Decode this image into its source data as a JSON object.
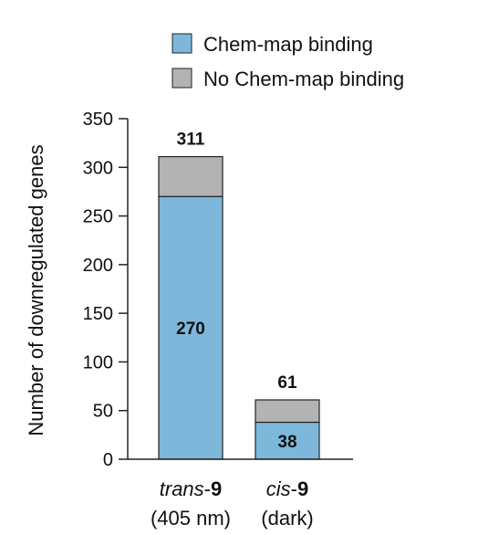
{
  "colors": {
    "chem_map_binding": "#7db8da",
    "no_chem_map_binding": "#b3b3b3",
    "stroke": "#222222",
    "axis": "#222222"
  },
  "chart_data": {
    "type": "bar",
    "stacked": true,
    "categories": [
      {
        "id": "trans",
        "italic": "trans",
        "sep": "-",
        "bold": "9",
        "sub": "(405 nm)"
      },
      {
        "id": "cis",
        "italic": "cis",
        "sep": "-",
        "bold": "9",
        "sub": "(dark)"
      }
    ],
    "series": [
      {
        "name": "Chem-map binding",
        "values": [
          270,
          38
        ]
      },
      {
        "name": "No Chem-map binding",
        "values": [
          41,
          23
        ]
      }
    ],
    "totals": [
      311,
      61
    ],
    "inner_labels": [
      "270",
      "38"
    ],
    "total_labels": [
      "311",
      "61"
    ],
    "ylabel": "Number of downregulated genes",
    "xlabel": "",
    "ylim": [
      0,
      350
    ],
    "yticks": [
      0,
      50,
      100,
      150,
      200,
      250,
      300,
      350
    ],
    "grid": false,
    "legend_position": "top"
  }
}
